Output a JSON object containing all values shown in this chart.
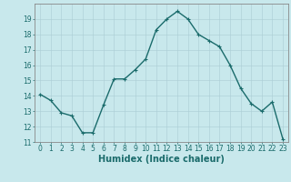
{
  "x": [
    0,
    1,
    2,
    3,
    4,
    5,
    6,
    7,
    8,
    9,
    10,
    11,
    12,
    13,
    14,
    15,
    16,
    17,
    18,
    19,
    20,
    21,
    22,
    23
  ],
  "y": [
    14.1,
    13.7,
    12.9,
    12.7,
    11.6,
    11.6,
    13.4,
    15.1,
    15.1,
    15.7,
    16.4,
    18.3,
    19.0,
    19.5,
    19.0,
    18.0,
    17.6,
    17.2,
    16.0,
    14.5,
    13.5,
    13.0,
    13.6,
    11.2
  ],
  "xlim": [
    -0.5,
    23.5
  ],
  "ylim": [
    11,
    20.0
  ],
  "yticks": [
    11,
    12,
    13,
    14,
    15,
    16,
    17,
    18,
    19
  ],
  "xticks": [
    0,
    1,
    2,
    3,
    4,
    5,
    6,
    7,
    8,
    9,
    10,
    11,
    12,
    13,
    14,
    15,
    16,
    17,
    18,
    19,
    20,
    21,
    22,
    23
  ],
  "xlabel": "Humidex (Indice chaleur)",
  "line_color": "#1a6b6b",
  "marker": "+",
  "bg_color": "#c8e8ec",
  "grid_color": "#aacdd4",
  "axis_color": "#555555",
  "label_color": "#1a6b6b",
  "tick_label_size": 5.5,
  "xlabel_size": 7.0,
  "line_width": 1.0,
  "marker_size": 3.5,
  "marker_edge_width": 0.8
}
